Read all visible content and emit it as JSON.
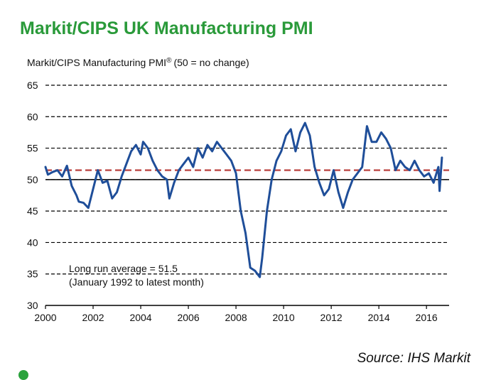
{
  "chart_data": {
    "type": "line",
    "title": "Markit/CIPS UK Manufacturing PMI",
    "ylabel": "Markit/CIPS Manufacturing PMI",
    "ylabel_superscript": "®",
    "ylabel_note": "(50 = no change)",
    "xlim": [
      2000,
      2016.95
    ],
    "ylim": [
      30,
      65
    ],
    "yticks": [
      30,
      35,
      40,
      45,
      50,
      55,
      60,
      65
    ],
    "xticks": [
      2000,
      2002,
      2004,
      2006,
      2008,
      2010,
      2012,
      2014,
      2016
    ],
    "grid": "dashed horizontal",
    "reference_lines": [
      {
        "value": 50,
        "style": "solid",
        "color": "#000000"
      },
      {
        "value": 51.5,
        "style": "dashed",
        "color": "#c0504d"
      }
    ],
    "annotation": {
      "line1": "Long run average = 51.5",
      "line2": "(January 1992 to latest month)"
    },
    "series": [
      {
        "color": "#1f4e99",
        "x": [
          2000.0,
          2000.1,
          2000.3,
          2000.5,
          2000.7,
          2000.9,
          2001.1,
          2001.3,
          2001.4,
          2001.6,
          2001.8,
          2002.0,
          2002.2,
          2002.4,
          2002.6,
          2002.8,
          2003.0,
          2003.2,
          2003.4,
          2003.6,
          2003.8,
          2004.0,
          2004.1,
          2004.3,
          2004.5,
          2004.7,
          2004.9,
          2005.1,
          2005.2,
          2005.4,
          2005.6,
          2005.8,
          2006.0,
          2006.2,
          2006.4,
          2006.6,
          2006.8,
          2007.0,
          2007.2,
          2007.4,
          2007.6,
          2007.8,
          2008.0,
          2008.2,
          2008.4,
          2008.6,
          2008.8,
          2009.0,
          2009.1,
          2009.3,
          2009.5,
          2009.7,
          2009.9,
          2010.1,
          2010.3,
          2010.5,
          2010.7,
          2010.9,
          2011.1,
          2011.3,
          2011.5,
          2011.7,
          2011.9,
          2012.1,
          2012.3,
          2012.5,
          2012.7,
          2012.9,
          2013.1,
          2013.3,
          2013.5,
          2013.7,
          2013.9,
          2014.1,
          2014.3,
          2014.5,
          2014.7,
          2014.9,
          2015.1,
          2015.3,
          2015.5,
          2015.7,
          2015.9,
          2016.1,
          2016.3,
          2016.5,
          2016.55,
          2016.65
        ],
        "values": [
          52.0,
          50.8,
          51.2,
          51.5,
          50.5,
          52.2,
          49.0,
          47.5,
          46.5,
          46.3,
          45.5,
          48.5,
          51.5,
          49.5,
          49.8,
          47.0,
          48.0,
          50.5,
          52.5,
          54.5,
          55.5,
          54.0,
          56.0,
          55.0,
          53.0,
          51.5,
          50.5,
          50.0,
          47.0,
          49.5,
          51.5,
          52.5,
          53.5,
          52.0,
          55.0,
          53.5,
          55.5,
          54.5,
          56.0,
          55.0,
          54.0,
          53.0,
          51.0,
          45.0,
          41.5,
          36.0,
          35.5,
          34.5,
          37.5,
          45.0,
          50.0,
          53.0,
          54.5,
          57.0,
          58.0,
          54.5,
          57.5,
          59.0,
          57.0,
          52.0,
          49.5,
          47.5,
          48.5,
          51.5,
          48.0,
          45.5,
          48.0,
          50.0,
          51.0,
          52.0,
          58.5,
          56.0,
          56.0,
          57.5,
          56.5,
          55.0,
          51.5,
          53.0,
          52.0,
          51.5,
          53.0,
          51.5,
          50.5,
          51.0,
          49.5,
          52.0,
          48.2,
          53.5
        ]
      }
    ]
  },
  "source_label": "Source: IHS Markit"
}
